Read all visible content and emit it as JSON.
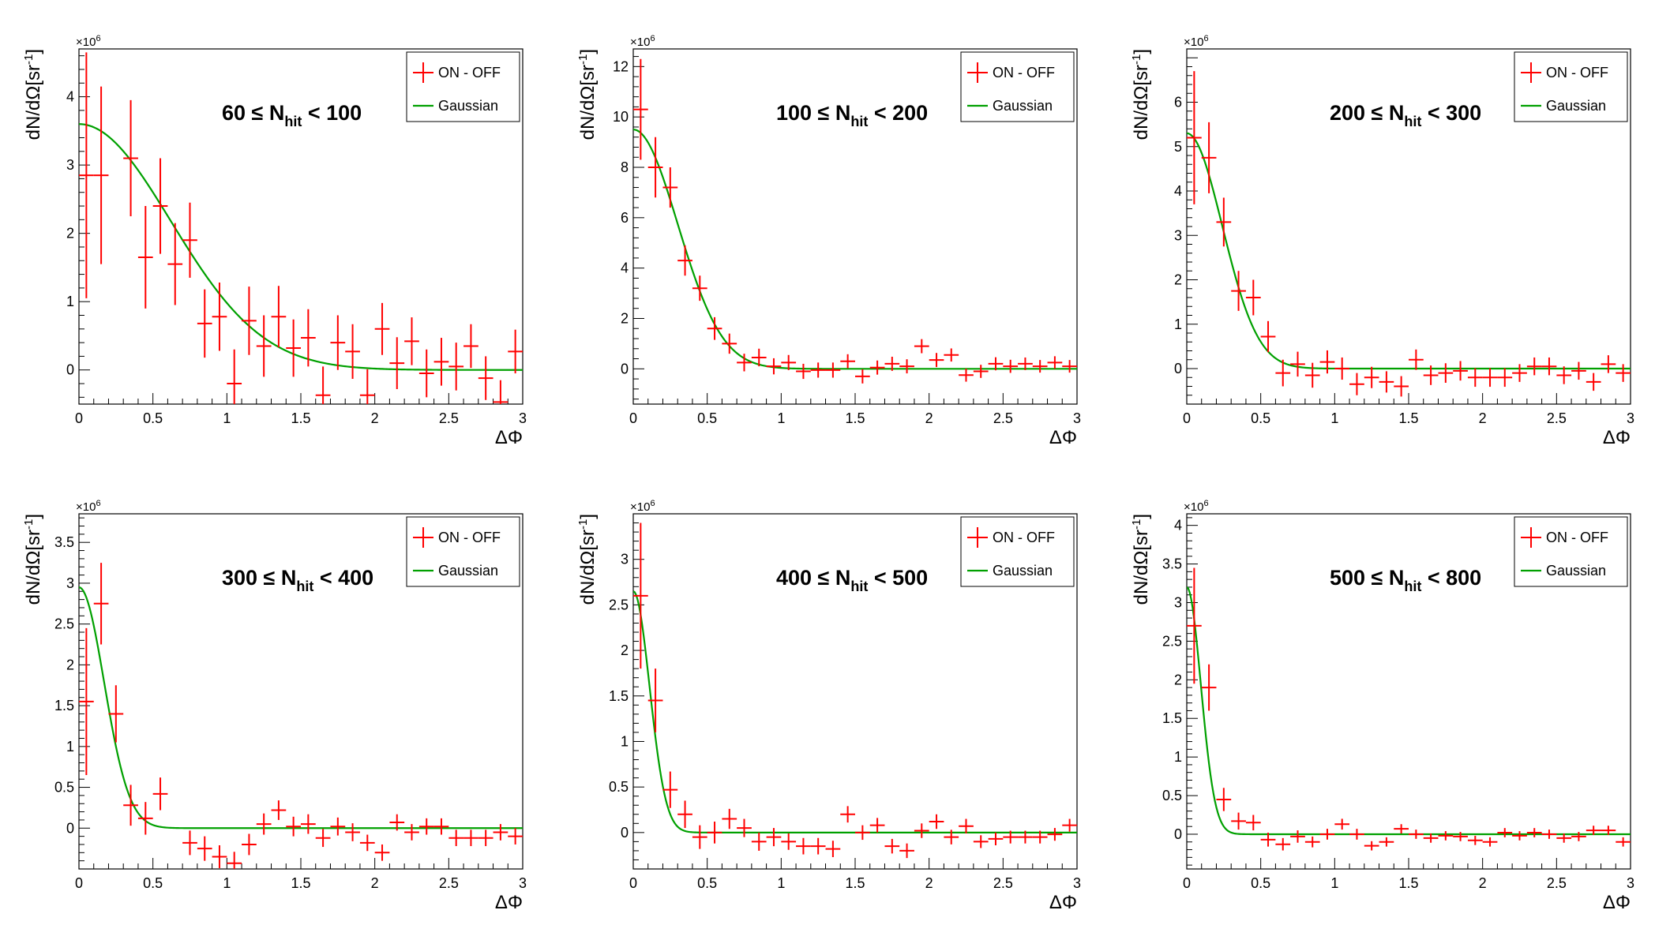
{
  "figure": {
    "xlabel": "ΔΦ",
    "ylabel_main": "dN/dΩ[sr",
    "ylabel_sup": "-1",
    "ylabel_close": "]",
    "exponent_base": "×10",
    "exponent_power": "6",
    "legend": [
      "ON - OFF",
      "Gaussian"
    ],
    "colors": {
      "data": "#ff0000",
      "fit": "#00a000",
      "axes": "#000000"
    }
  },
  "chart_data": [
    {
      "type": "scatter",
      "label": {
        "low": "60",
        "op": "≤",
        "var": "N",
        "sub": "hit",
        "high": "< 100"
      },
      "xlim": [
        0,
        3
      ],
      "ylim": [
        -0.5,
        4.7
      ],
      "xticks": [
        "0",
        "0.5",
        "1",
        "1.5",
        "2",
        "2.5",
        "3"
      ],
      "yticks": [
        "0",
        "1",
        "2",
        "3",
        "4"
      ],
      "fit": {
        "amp": 3.6,
        "sigma": 0.62
      },
      "x": [
        0.05,
        0.15,
        0.35,
        0.45,
        0.55,
        0.65,
        0.75,
        0.85,
        0.95,
        1.05,
        1.15,
        1.25,
        1.35,
        1.45,
        1.55,
        1.65,
        1.75,
        1.85,
        1.95,
        2.05,
        2.15,
        2.25,
        2.35,
        2.45,
        2.55,
        2.65,
        2.75,
        2.85,
        2.95
      ],
      "y": [
        2.85,
        2.85,
        3.1,
        1.65,
        2.4,
        1.55,
        1.9,
        0.68,
        0.78,
        -0.2,
        0.72,
        0.35,
        0.78,
        0.32,
        0.47,
        -0.37,
        0.4,
        0.27,
        -0.37,
        0.6,
        0.1,
        0.42,
        -0.05,
        0.12,
        0.05,
        0.35,
        -0.12,
        -0.47,
        0.27
      ],
      "yerr": [
        1.8,
        1.3,
        0.85,
        0.75,
        0.7,
        0.6,
        0.55,
        0.5,
        0.5,
        0.5,
        0.5,
        0.45,
        0.45,
        0.42,
        0.42,
        0.42,
        0.4,
        0.4,
        0.38,
        0.38,
        0.38,
        0.35,
        0.35,
        0.35,
        0.35,
        0.32,
        0.32,
        0.32,
        0.32
      ]
    },
    {
      "type": "scatter",
      "label": {
        "low": "100",
        "op": "≤",
        "var": "N",
        "sub": "hit",
        "high": "< 200"
      },
      "xlim": [
        0,
        3
      ],
      "ylim": [
        -1.4,
        12.7
      ],
      "xticks": [
        "0",
        "0.5",
        "1",
        "1.5",
        "2",
        "2.5",
        "3"
      ],
      "yticks": [
        "0",
        "2",
        "4",
        "6",
        "8",
        "10",
        "12"
      ],
      "fit": {
        "amp": 9.5,
        "sigma": 0.3
      },
      "x": [
        0.05,
        0.15,
        0.25,
        0.35,
        0.45,
        0.55,
        0.65,
        0.75,
        0.85,
        0.95,
        1.05,
        1.15,
        1.25,
        1.35,
        1.45,
        1.55,
        1.65,
        1.75,
        1.85,
        1.95,
        2.05,
        2.15,
        2.25,
        2.35,
        2.45,
        2.55,
        2.65,
        2.75,
        2.85,
        2.95
      ],
      "y": [
        10.3,
        8.0,
        7.2,
        4.3,
        3.2,
        1.6,
        1.0,
        0.25,
        0.45,
        0.1,
        0.25,
        -0.1,
        -0.05,
        -0.05,
        0.3,
        -0.3,
        0.05,
        0.2,
        0.1,
        0.9,
        0.35,
        0.55,
        -0.25,
        -0.1,
        0.2,
        0.1,
        0.2,
        0.1,
        0.25,
        0.1
      ],
      "yerr": [
        2.0,
        1.2,
        0.8,
        0.6,
        0.5,
        0.45,
        0.4,
        0.35,
        0.35,
        0.32,
        0.3,
        0.3,
        0.3,
        0.3,
        0.28,
        0.28,
        0.28,
        0.28,
        0.28,
        0.28,
        0.28,
        0.26,
        0.26,
        0.26,
        0.26,
        0.26,
        0.25,
        0.25,
        0.25,
        0.25
      ]
    },
    {
      "type": "scatter",
      "label": {
        "low": "200",
        "op": "≤",
        "var": "N",
        "sub": "hit",
        "high": "< 300"
      },
      "xlim": [
        0,
        3
      ],
      "ylim": [
        -0.8,
        7.2
      ],
      "xticks": [
        "0",
        "0.5",
        "1",
        "1.5",
        "2",
        "2.5",
        "3"
      ],
      "yticks": [
        "0",
        "1",
        "2",
        "3",
        "4",
        "5",
        "6"
      ],
      "fit": {
        "amp": 5.3,
        "sigma": 0.24
      },
      "x": [
        0.05,
        0.15,
        0.25,
        0.35,
        0.45,
        0.55,
        0.65,
        0.75,
        0.85,
        0.95,
        1.05,
        1.15,
        1.25,
        1.35,
        1.45,
        1.55,
        1.65,
        1.75,
        1.85,
        1.95,
        2.05,
        2.15,
        2.25,
        2.35,
        2.45,
        2.55,
        2.65,
        2.75,
        2.85,
        2.95
      ],
      "y": [
        5.2,
        4.75,
        3.3,
        1.75,
        1.6,
        0.72,
        -0.1,
        0.1,
        -0.15,
        0.15,
        0.0,
        -0.35,
        -0.2,
        -0.3,
        -0.4,
        0.2,
        -0.15,
        -0.1,
        -0.05,
        -0.2,
        -0.2,
        -0.2,
        -0.1,
        0.05,
        0.05,
        -0.15,
        -0.05,
        -0.3,
        0.1,
        -0.1
      ],
      "yerr": [
        1.5,
        0.8,
        0.55,
        0.45,
        0.4,
        0.35,
        0.3,
        0.28,
        0.28,
        0.26,
        0.25,
        0.25,
        0.24,
        0.24,
        0.23,
        0.23,
        0.22,
        0.22,
        0.22,
        0.21,
        0.21,
        0.21,
        0.2,
        0.2,
        0.2,
        0.2,
        0.2,
        0.2,
        0.2,
        0.2
      ]
    },
    {
      "type": "scatter",
      "label": {
        "low": "300",
        "op": "≤",
        "var": "N",
        "sub": "hit",
        "high": "< 400"
      },
      "xlim": [
        0,
        3
      ],
      "ylim": [
        -0.5,
        3.85
      ],
      "xticks": [
        "0",
        "0.5",
        "1",
        "1.5",
        "2",
        "2.5",
        "3"
      ],
      "yticks": [
        "0",
        "0.5",
        "1",
        "1.5",
        "2",
        "2.5",
        "3",
        "3.5"
      ],
      "fit": {
        "amp": 2.95,
        "sigma": 0.17
      },
      "x": [
        0.05,
        0.15,
        0.25,
        0.35,
        0.45,
        0.55,
        0.75,
        0.85,
        0.95,
        1.05,
        1.15,
        1.25,
        1.35,
        1.45,
        1.55,
        1.65,
        1.75,
        1.85,
        1.95,
        2.05,
        2.15,
        2.25,
        2.35,
        2.45,
        2.55,
        2.65,
        2.75,
        2.85,
        2.95
      ],
      "y": [
        1.55,
        2.75,
        1.4,
        0.28,
        0.12,
        0.42,
        -0.18,
        -0.25,
        -0.35,
        -0.43,
        -0.2,
        0.05,
        0.22,
        0.02,
        0.05,
        -0.12,
        0.02,
        -0.05,
        -0.18,
        -0.3,
        0.07,
        -0.05,
        0.02,
        0.02,
        -0.12,
        -0.12,
        -0.12,
        -0.05,
        -0.1
      ],
      "yerr": [
        0.9,
        0.5,
        0.35,
        0.25,
        0.2,
        0.2,
        0.15,
        0.15,
        0.14,
        0.14,
        0.13,
        0.13,
        0.12,
        0.12,
        0.12,
        0.11,
        0.11,
        0.11,
        0.1,
        0.1,
        0.1,
        0.1,
        0.1,
        0.1,
        0.1,
        0.1,
        0.1,
        0.1,
        0.1
      ]
    },
    {
      "type": "scatter",
      "label": {
        "low": "400",
        "op": "≤",
        "var": "N",
        "sub": "hit",
        "high": "< 500"
      },
      "xlim": [
        0,
        3
      ],
      "ylim": [
        -0.4,
        3.5
      ],
      "xticks": [
        "0",
        "0.5",
        "1",
        "1.5",
        "2",
        "2.5",
        "3"
      ],
      "yticks": [
        "0",
        "0.5",
        "1",
        "1.5",
        "2",
        "2.5",
        "3"
      ],
      "fit": {
        "amp": 2.65,
        "sigma": 0.11
      },
      "x": [
        0.05,
        0.15,
        0.25,
        0.35,
        0.45,
        0.55,
        0.65,
        0.75,
        0.85,
        0.95,
        1.05,
        1.15,
        1.25,
        1.35,
        1.45,
        1.55,
        1.65,
        1.75,
        1.85,
        1.95,
        2.05,
        2.15,
        2.25,
        2.35,
        2.45,
        2.55,
        2.65,
        2.75,
        2.85,
        2.95
      ],
      "y": [
        2.6,
        1.45,
        0.47,
        0.2,
        -0.05,
        0.0,
        0.15,
        0.05,
        -0.1,
        -0.05,
        -0.1,
        -0.15,
        -0.15,
        -0.18,
        0.2,
        0.0,
        0.08,
        -0.15,
        -0.2,
        0.02,
        0.12,
        -0.05,
        0.07,
        -0.1,
        -0.07,
        -0.05,
        -0.05,
        -0.05,
        -0.02,
        0.08
      ],
      "yerr": [
        0.8,
        0.35,
        0.2,
        0.15,
        0.13,
        0.12,
        0.11,
        0.1,
        0.1,
        0.1,
        0.09,
        0.09,
        0.09,
        0.09,
        0.09,
        0.08,
        0.08,
        0.08,
        0.08,
        0.08,
        0.08,
        0.08,
        0.08,
        0.07,
        0.07,
        0.07,
        0.07,
        0.07,
        0.07,
        0.07
      ]
    },
    {
      "type": "scatter",
      "label": {
        "low": "500",
        "op": "≤",
        "var": "N",
        "sub": "hit",
        "high": "< 800"
      },
      "xlim": [
        0,
        3
      ],
      "ylim": [
        -0.45,
        4.15
      ],
      "xticks": [
        "0",
        "0.5",
        "1",
        "1.5",
        "2",
        "2.5",
        "3"
      ],
      "yticks": [
        "0",
        "0.5",
        "1",
        "1.5",
        "2",
        "2.5",
        "3",
        "3.5",
        "4"
      ],
      "fit": {
        "amp": 3.2,
        "sigma": 0.095
      },
      "x": [
        0.05,
        0.15,
        0.25,
        0.35,
        0.45,
        0.55,
        0.65,
        0.75,
        0.85,
        0.95,
        1.05,
        1.15,
        1.25,
        1.35,
        1.45,
        1.55,
        1.65,
        1.75,
        1.85,
        1.95,
        2.05,
        2.15,
        2.25,
        2.35,
        2.45,
        2.55,
        2.65,
        2.75,
        2.85,
        2.95
      ],
      "y": [
        2.7,
        1.9,
        0.45,
        0.17,
        0.15,
        -0.07,
        -0.13,
        -0.03,
        -0.1,
        0.0,
        0.13,
        0.0,
        -0.15,
        -0.1,
        0.07,
        0.0,
        -0.05,
        -0.02,
        -0.03,
        -0.08,
        -0.1,
        0.02,
        -0.02,
        0.02,
        0.0,
        -0.05,
        -0.03,
        0.05,
        0.05,
        -0.1
      ],
      "yerr": [
        0.75,
        0.3,
        0.15,
        0.11,
        0.1,
        0.09,
        0.08,
        0.08,
        0.07,
        0.07,
        0.07,
        0.07,
        0.06,
        0.06,
        0.06,
        0.06,
        0.06,
        0.06,
        0.06,
        0.06,
        0.06,
        0.06,
        0.06,
        0.06,
        0.06,
        0.06,
        0.06,
        0.06,
        0.06,
        0.06
      ]
    }
  ]
}
